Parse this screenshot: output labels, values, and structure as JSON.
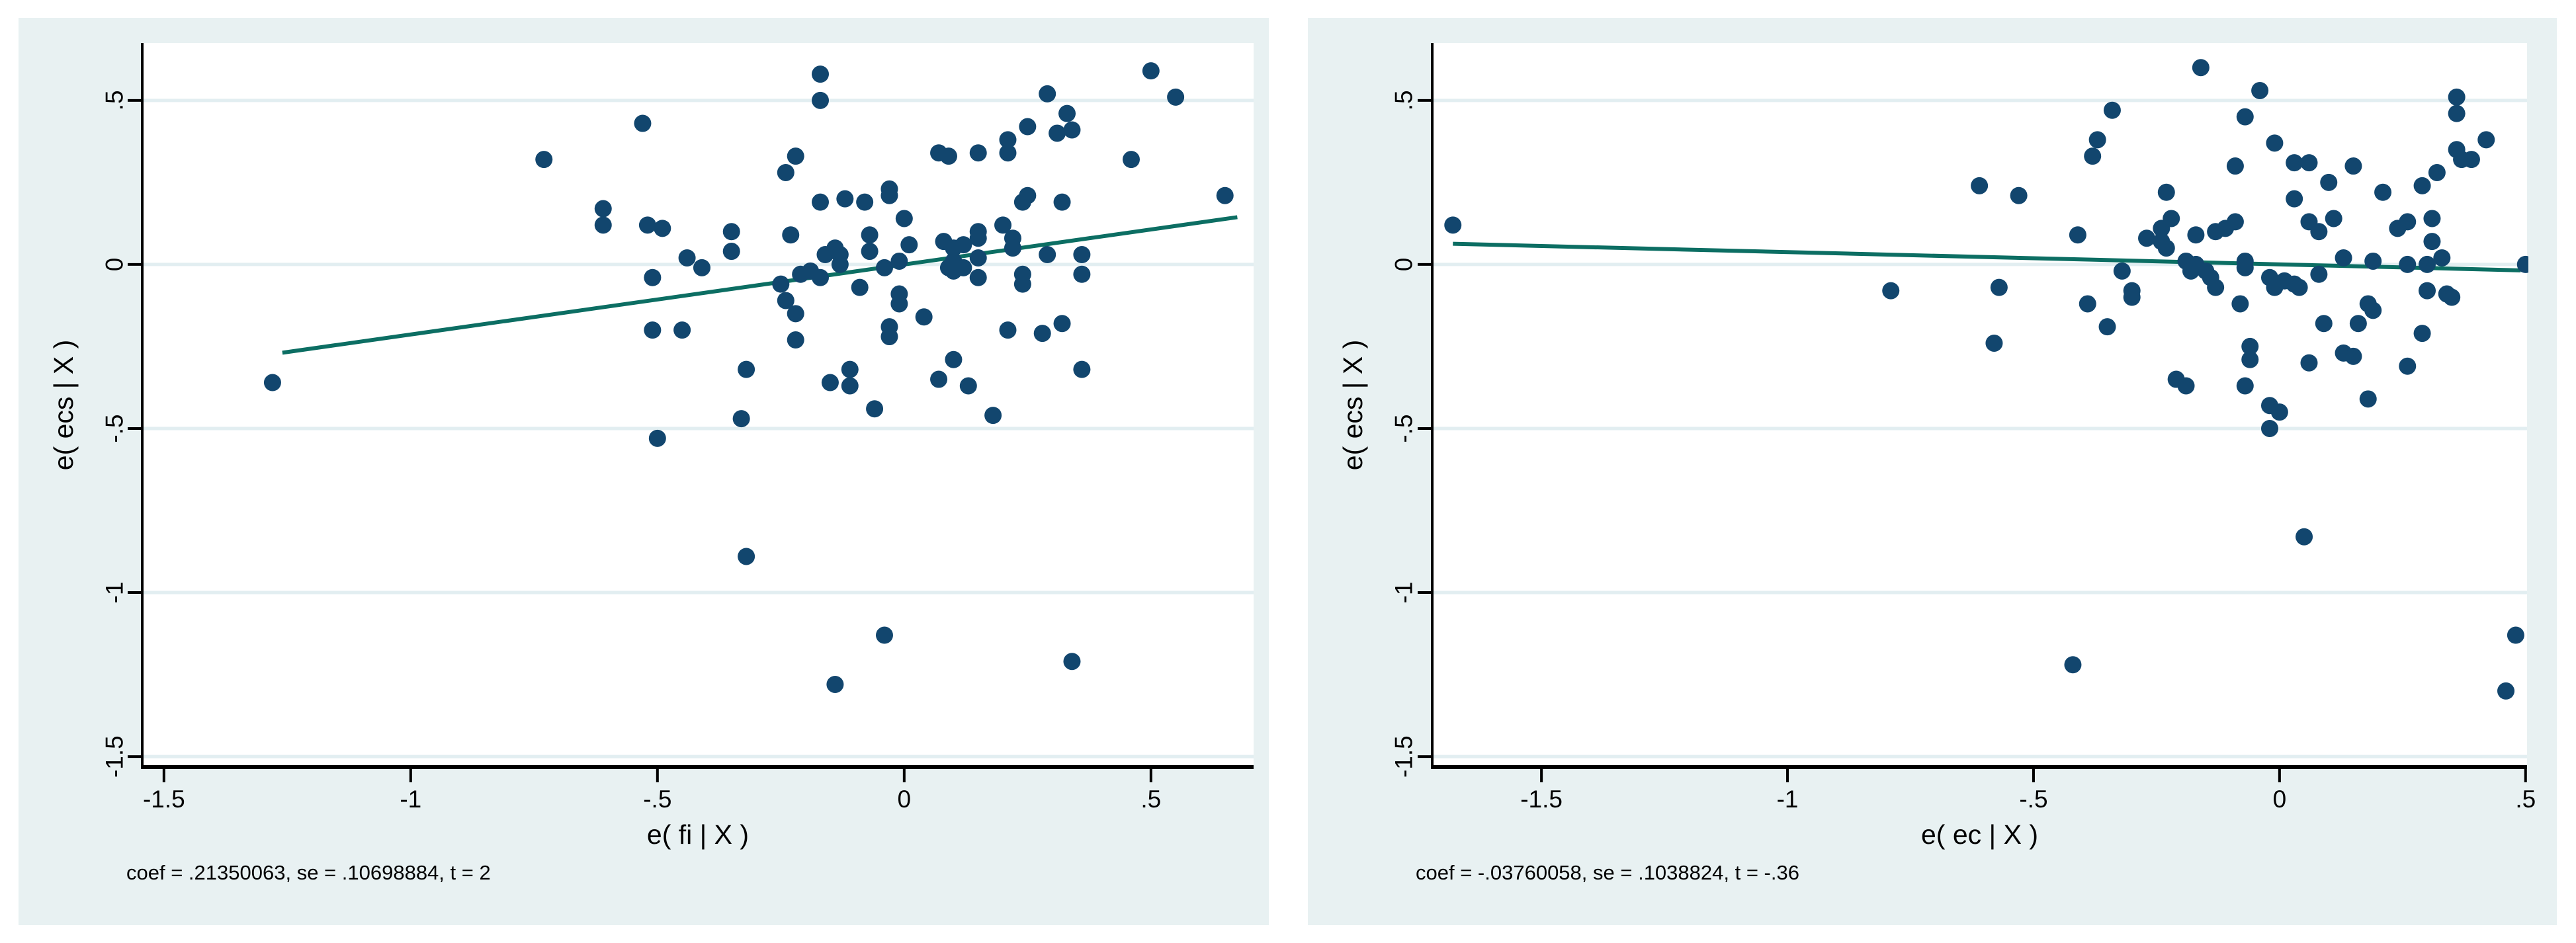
{
  "window": {
    "background": "#ffffff"
  },
  "colors": {
    "panel_background": "#e8f1f2",
    "plot_background": "#ffffff",
    "gridline": "#e2eef1",
    "axis_line": "#000000",
    "text": "#000000",
    "marker_fill": "#12466e",
    "fit_line": "#0c6e63"
  },
  "chart_data": [
    {
      "type": "scatter",
      "panel": "left",
      "title": "",
      "xlabel": "e( fi | X )",
      "ylabel": "e( ecs | X )",
      "note": "coef = .21350063, se = .10698884, t = 2",
      "xlim": [
        -1.544,
        0.708
      ],
      "ylim": [
        -1.532,
        0.675
      ],
      "xticks": [
        -1.5,
        -1,
        -0.5,
        0,
        0.5
      ],
      "xtick_labels": [
        "-1.5",
        "-1",
        "-.5",
        "0",
        ".5"
      ],
      "yticks": [
        0.5,
        0,
        -0.5,
        -1,
        -1.5
      ],
      "ytick_labels": [
        ".5",
        "0",
        "-.5",
        "-1",
        "-1.5"
      ],
      "grid": "horizontal-only",
      "legend": "none",
      "fit_line": {
        "x1": -1.26,
        "y1": -0.269,
        "x2": 0.675,
        "y2": 0.144
      },
      "points": [
        [
          -1.28,
          -0.36
        ],
        [
          -0.73,
          0.32
        ],
        [
          -0.61,
          0.17
        ],
        [
          -0.61,
          0.12
        ],
        [
          -0.53,
          0.43
        ],
        [
          -0.52,
          0.12
        ],
        [
          -0.49,
          0.11
        ],
        [
          -0.51,
          -0.04
        ],
        [
          -0.44,
          0.02
        ],
        [
          -0.41,
          -0.01
        ],
        [
          -0.51,
          -0.2
        ],
        [
          -0.45,
          -0.2
        ],
        [
          -0.5,
          -0.53
        ],
        [
          -0.35,
          0.1
        ],
        [
          -0.35,
          0.04
        ],
        [
          -0.33,
          -0.47
        ],
        [
          -0.32,
          -0.32
        ],
        [
          -0.25,
          -0.06
        ],
        [
          -0.24,
          0.28
        ],
        [
          -0.24,
          -0.11
        ],
        [
          -0.23,
          0.09
        ],
        [
          -0.22,
          0.33
        ],
        [
          -0.22,
          -0.15
        ],
        [
          -0.22,
          -0.23
        ],
        [
          -0.21,
          -0.03
        ],
        [
          -0.19,
          -0.02
        ],
        [
          -0.17,
          0.58
        ],
        [
          -0.17,
          0.5
        ],
        [
          -0.17,
          0.19
        ],
        [
          -0.17,
          -0.04
        ],
        [
          -0.16,
          0.03
        ],
        [
          -0.15,
          -0.36
        ],
        [
          -0.14,
          0.05
        ],
        [
          -0.13,
          0.03
        ],
        [
          -0.13,
          0.0
        ],
        [
          -0.12,
          0.2
        ],
        [
          -0.11,
          -0.32
        ],
        [
          -0.11,
          -0.37
        ],
        [
          -0.09,
          -0.07
        ],
        [
          -0.08,
          0.19
        ],
        [
          -0.07,
          0.09
        ],
        [
          -0.07,
          0.04
        ],
        [
          -0.06,
          -0.44
        ],
        [
          -0.04,
          -0.01
        ],
        [
          -0.03,
          0.23
        ],
        [
          -0.03,
          0.21
        ],
        [
          -0.03,
          -0.19
        ],
        [
          -0.03,
          -0.22
        ],
        [
          -0.01,
          0.01
        ],
        [
          -0.01,
          -0.09
        ],
        [
          -0.01,
          -0.12
        ],
        [
          0.0,
          0.14
        ],
        [
          0.01,
          0.06
        ],
        [
          0.04,
          -0.16
        ],
        [
          0.07,
          0.34
        ],
        [
          0.07,
          -0.35
        ],
        [
          0.08,
          0.07
        ],
        [
          0.09,
          0.33
        ],
        [
          0.09,
          -0.01
        ],
        [
          0.1,
          0.05
        ],
        [
          0.1,
          0.01
        ],
        [
          0.1,
          -0.02
        ],
        [
          0.1,
          -0.29
        ],
        [
          0.12,
          0.06
        ],
        [
          0.12,
          -0.01
        ],
        [
          0.13,
          -0.37
        ],
        [
          0.15,
          0.34
        ],
        [
          0.15,
          0.1
        ],
        [
          0.15,
          0.08
        ],
        [
          0.15,
          0.02
        ],
        [
          0.15,
          -0.04
        ],
        [
          0.18,
          -0.46
        ],
        [
          0.2,
          0.12
        ],
        [
          0.21,
          0.38
        ],
        [
          0.21,
          0.34
        ],
        [
          0.21,
          -0.2
        ],
        [
          0.22,
          0.08
        ],
        [
          0.22,
          0.05
        ],
        [
          0.24,
          0.19
        ],
        [
          0.24,
          -0.03
        ],
        [
          0.24,
          -0.06
        ],
        [
          0.25,
          0.42
        ],
        [
          0.25,
          0.21
        ],
        [
          0.28,
          -0.21
        ],
        [
          0.29,
          0.52
        ],
        [
          0.29,
          0.03
        ],
        [
          0.31,
          0.4
        ],
        [
          0.32,
          0.19
        ],
        [
          0.32,
          -0.18
        ],
        [
          0.33,
          0.46
        ],
        [
          0.34,
          0.41
        ],
        [
          0.36,
          0.03
        ],
        [
          0.36,
          -0.03
        ],
        [
          0.36,
          -0.32
        ],
        [
          0.46,
          0.32
        ],
        [
          0.5,
          0.59
        ],
        [
          0.55,
          0.51
        ],
        [
          0.65,
          0.21
        ],
        [
          -0.32,
          -0.89
        ],
        [
          -0.14,
          -1.28
        ],
        [
          -0.04,
          -1.13
        ],
        [
          0.34,
          -1.21
        ]
      ]
    },
    {
      "type": "scatter",
      "panel": "right",
      "title": "",
      "xlabel": "e( ec | X )",
      "ylabel": "e( ecs | X )",
      "note": "coef = -.03760058, se = .1038824, t = -.36",
      "xlim": [
        -1.722,
        0.503
      ],
      "ylim": [
        -1.532,
        0.675
      ],
      "xticks": [
        -1.5,
        -1,
        -0.5,
        0,
        0.5
      ],
      "xtick_labels": [
        "-1.5",
        "-1",
        "-.5",
        "0",
        ".5"
      ],
      "yticks": [
        0.5,
        0,
        -0.5,
        -1,
        -1.5
      ],
      "ytick_labels": [
        ".5",
        "0",
        "-.5",
        "-1",
        "-1.5"
      ],
      "grid": "horizontal-only",
      "legend": "none",
      "fit_line": {
        "x1": -1.68,
        "y1": 0.063,
        "x2": 0.49,
        "y2": -0.018
      },
      "points": [
        [
          -1.68,
          0.12
        ],
        [
          -0.79,
          -0.08
        ],
        [
          -0.61,
          0.24
        ],
        [
          -0.58,
          -0.24
        ],
        [
          -0.57,
          -0.07
        ],
        [
          -0.53,
          0.21
        ],
        [
          -0.42,
          -1.22
        ],
        [
          -0.41,
          0.09
        ],
        [
          -0.39,
          -0.12
        ],
        [
          -0.38,
          0.33
        ],
        [
          -0.37,
          0.38
        ],
        [
          -0.35,
          -0.19
        ],
        [
          -0.34,
          0.47
        ],
        [
          -0.32,
          -0.02
        ],
        [
          -0.3,
          -0.08
        ],
        [
          -0.3,
          -0.1
        ],
        [
          -0.27,
          0.08
        ],
        [
          -0.24,
          0.11
        ],
        [
          -0.24,
          0.07
        ],
        [
          -0.23,
          0.22
        ],
        [
          -0.23,
          0.05
        ],
        [
          -0.22,
          0.14
        ],
        [
          -0.21,
          -0.35
        ],
        [
          -0.19,
          0.01
        ],
        [
          -0.19,
          -0.37
        ],
        [
          -0.18,
          -0.02
        ],
        [
          -0.17,
          0.09
        ],
        [
          -0.17,
          0.0
        ],
        [
          -0.16,
          0.6
        ],
        [
          -0.15,
          -0.02
        ],
        [
          -0.14,
          -0.04
        ],
        [
          -0.13,
          0.1
        ],
        [
          -0.13,
          -0.07
        ],
        [
          -0.11,
          0.11
        ],
        [
          -0.09,
          0.3
        ],
        [
          -0.09,
          0.13
        ],
        [
          -0.08,
          -0.12
        ],
        [
          -0.07,
          0.45
        ],
        [
          -0.07,
          0.01
        ],
        [
          -0.07,
          -0.01
        ],
        [
          -0.07,
          -0.37
        ],
        [
          -0.06,
          -0.25
        ],
        [
          -0.06,
          -0.29
        ],
        [
          -0.04,
          0.53
        ],
        [
          -0.02,
          -0.04
        ],
        [
          -0.02,
          -0.43
        ],
        [
          -0.02,
          -0.5
        ],
        [
          -0.01,
          0.37
        ],
        [
          -0.01,
          -0.07
        ],
        [
          0.0,
          -0.45
        ],
        [
          0.01,
          -0.05
        ],
        [
          0.03,
          0.31
        ],
        [
          0.03,
          0.2
        ],
        [
          0.03,
          -0.06
        ],
        [
          0.04,
          -0.07
        ],
        [
          0.05,
          -0.83
        ],
        [
          0.06,
          0.31
        ],
        [
          0.06,
          0.13
        ],
        [
          0.06,
          -0.3
        ],
        [
          0.08,
          0.1
        ],
        [
          0.08,
          -0.03
        ],
        [
          0.09,
          -0.18
        ],
        [
          0.1,
          0.25
        ],
        [
          0.11,
          0.14
        ],
        [
          0.13,
          0.02
        ],
        [
          0.13,
          -0.27
        ],
        [
          0.15,
          0.3
        ],
        [
          0.15,
          -0.28
        ],
        [
          0.16,
          -0.18
        ],
        [
          0.18,
          -0.12
        ],
        [
          0.18,
          -0.41
        ],
        [
          0.19,
          0.01
        ],
        [
          0.19,
          -0.14
        ],
        [
          0.21,
          0.22
        ],
        [
          0.24,
          0.11
        ],
        [
          0.26,
          0.13
        ],
        [
          0.26,
          0.0
        ],
        [
          0.26,
          -0.31
        ],
        [
          0.29,
          0.24
        ],
        [
          0.29,
          -0.21
        ],
        [
          0.3,
          0.0
        ],
        [
          0.3,
          -0.08
        ],
        [
          0.31,
          0.14
        ],
        [
          0.31,
          0.07
        ],
        [
          0.32,
          0.28
        ],
        [
          0.33,
          0.02
        ],
        [
          0.34,
          -0.09
        ],
        [
          0.35,
          -0.1
        ],
        [
          0.36,
          0.51
        ],
        [
          0.36,
          0.46
        ],
        [
          0.36,
          0.35
        ],
        [
          0.37,
          0.32
        ],
        [
          0.39,
          0.32
        ],
        [
          0.42,
          0.38
        ],
        [
          0.46,
          -1.3
        ],
        [
          0.48,
          -1.13
        ],
        [
          0.5,
          0.0
        ]
      ]
    }
  ]
}
